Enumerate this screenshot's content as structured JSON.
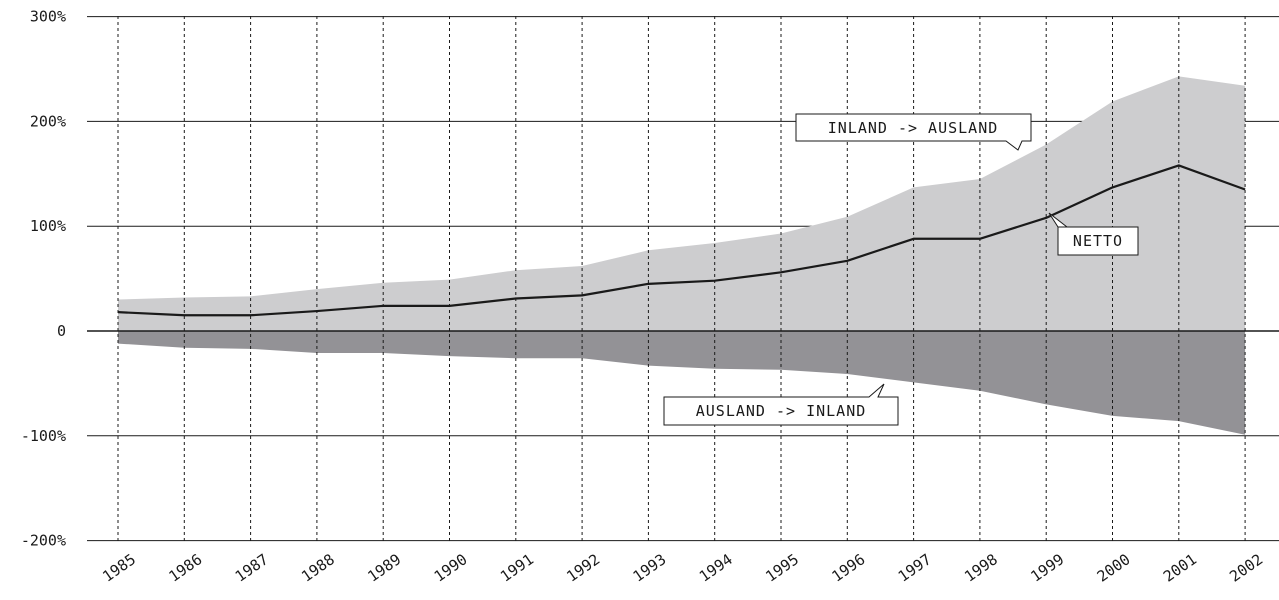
{
  "chart_data": {
    "type": "area",
    "categories": [
      "1985",
      "1986",
      "1987",
      "1988",
      "1989",
      "1990",
      "1991",
      "1992",
      "1993",
      "1994",
      "1995",
      "1996",
      "1997",
      "1998",
      "1999",
      "2000",
      "2001",
      "2002"
    ],
    "y_ticks": [
      300,
      200,
      100,
      0,
      -100,
      -200
    ],
    "y_tick_labels": [
      "300%",
      "200%",
      "100%",
      "0",
      "-100%",
      "-200%"
    ],
    "ylim": [
      -200,
      300
    ],
    "grid": {
      "horizontal": true,
      "vertical": "dashed"
    },
    "series": [
      {
        "name": "INLAND -> AUSLAND",
        "kind": "area",
        "color": "#cdcdcf",
        "values": [
          30,
          32,
          33,
          40,
          46,
          49,
          58,
          62,
          77,
          84,
          93,
          109,
          137,
          145,
          178,
          219,
          243,
          234
        ]
      },
      {
        "name": "AUSLAND -> INLAND",
        "kind": "area",
        "color": "#939296",
        "values": [
          -12,
          -16,
          -17,
          -21,
          -21,
          -24,
          -26,
          -26,
          -33,
          -36,
          -37,
          -41,
          -49,
          -57,
          -70,
          -81,
          -86,
          -99
        ]
      },
      {
        "name": "NETTO",
        "kind": "line",
        "color": "#1a1a1a",
        "values": [
          18,
          15,
          15,
          19,
          24,
          24,
          31,
          34,
          45,
          48,
          56,
          67,
          88,
          88,
          108,
          137,
          158,
          135
        ]
      }
    ],
    "annotations": {
      "inland_ausland": "INLAND -> AUSLAND",
      "netto": "NETTO",
      "ausland_inland": "AUSLAND -> INLAND"
    }
  }
}
